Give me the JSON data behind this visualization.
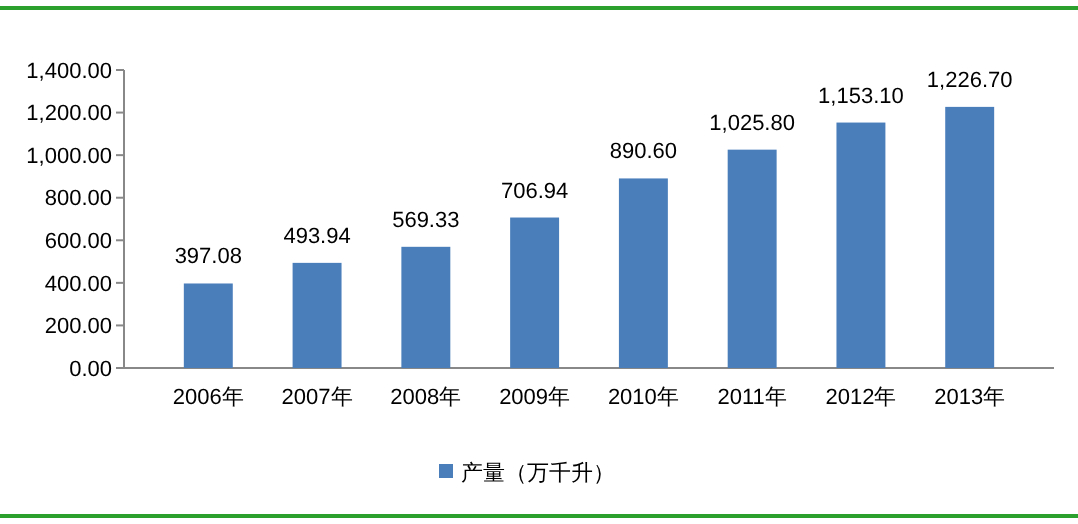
{
  "chart_data": {
    "type": "bar",
    "categories": [
      "2006年",
      "2007年",
      "2008年",
      "2009年",
      "2010年",
      "2011年",
      "2012年",
      "2013年"
    ],
    "series": [
      {
        "name": "产量（万千升）",
        "color": "#4a7ebb",
        "values": [
          397.08,
          493.94,
          569.33,
          706.94,
          890.6,
          1025.8,
          1153.1,
          1226.7
        ],
        "value_labels": [
          "397.08",
          "493.94",
          "569.33",
          "706.94",
          "890.60",
          "1,025.80",
          "1,153.10",
          "1,226.70"
        ]
      }
    ],
    "ylim": [
      0,
      1400
    ],
    "yticks": [
      {
        "value": 0,
        "label": "0.00"
      },
      {
        "value": 200,
        "label": "200.00"
      },
      {
        "value": 400,
        "label": "400.00"
      },
      {
        "value": 600,
        "label": "600.00"
      },
      {
        "value": 800,
        "label": "800.00"
      },
      {
        "value": 1000,
        "label": "1,000.00"
      },
      {
        "value": 1200,
        "label": "1,200.00"
      },
      {
        "value": 1400,
        "label": "1,400.00"
      }
    ],
    "grid": false,
    "legend": "bottom"
  }
}
